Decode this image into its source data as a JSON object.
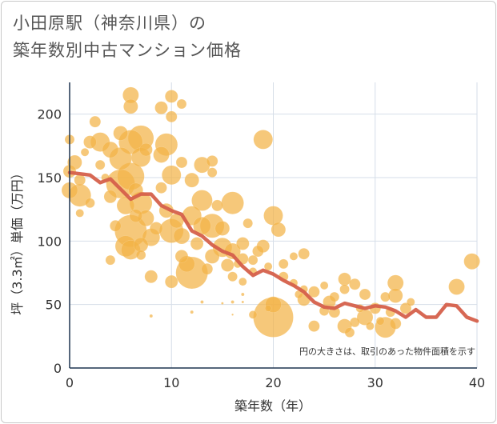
{
  "title_lines": [
    "小田原駅（神奈川県）の",
    "築年数別中古マンション価格"
  ],
  "chart_data": {
    "type": "scatter",
    "title": "小田原駅（神奈川県）の築年数別中古マンション価格",
    "xlabel": "築年数（年）",
    "ylabel": "坪（3.3㎡）単価（万円）",
    "xlim": [
      0,
      40
    ],
    "ylim": [
      0,
      225
    ],
    "x_ticks": [
      "0",
      "10",
      "20",
      "30",
      "40"
    ],
    "x_tick_values": [
      0,
      10,
      20,
      30,
      40
    ],
    "y_ticks": [
      "0",
      "50",
      "100",
      "150",
      "200"
    ],
    "y_tick_values": [
      0,
      50,
      100,
      150,
      200
    ],
    "grid": true,
    "annotation": "円の大きさは、取引のあった物件面積を示す",
    "colors": {
      "bubble": "#f2b347",
      "line": "#d5604b",
      "grid": "#d6dee8",
      "axis": "#1f3550"
    },
    "series": [
      {
        "type": "bubble",
        "points": [
          [
            0,
            155,
            8
          ],
          [
            0,
            180,
            6
          ],
          [
            0,
            140,
            10
          ],
          [
            0.5,
            162,
            9
          ],
          [
            1,
            148,
            7
          ],
          [
            1,
            122,
            5
          ],
          [
            1,
            136,
            14
          ],
          [
            1.5,
            170,
            5
          ],
          [
            2,
            178,
            8
          ],
          [
            2,
            130,
            6
          ],
          [
            2.5,
            194,
            7
          ],
          [
            3,
            178,
            12
          ],
          [
            3,
            160,
            6
          ],
          [
            3.5,
            150,
            5
          ],
          [
            4,
            172,
            10
          ],
          [
            4,
            135,
            8
          ],
          [
            4,
            85,
            6
          ],
          [
            4.5,
            112,
            7
          ],
          [
            5,
            185,
            9
          ],
          [
            5,
            165,
            14
          ],
          [
            5,
            145,
            18
          ],
          [
            5.5,
            128,
            11
          ],
          [
            5.5,
            96,
            13
          ],
          [
            6,
            215,
            10
          ],
          [
            6,
            206,
            9
          ],
          [
            6,
            178,
            15
          ],
          [
            6,
            151,
            17
          ],
          [
            6,
            108,
            20
          ],
          [
            6,
            93,
            12
          ],
          [
            6.5,
            140,
            9
          ],
          [
            6.5,
            120,
            8
          ],
          [
            7,
            181,
            16
          ],
          [
            7,
            166,
            12
          ],
          [
            7,
            130,
            14
          ],
          [
            7,
            97,
            9
          ],
          [
            7,
            89,
            6
          ],
          [
            7.5,
            172,
            8
          ],
          [
            7.5,
            118,
            10
          ],
          [
            8,
            103,
            11
          ],
          [
            8,
            72,
            8
          ],
          [
            8.5,
            110,
            8
          ],
          [
            9,
            205,
            8
          ],
          [
            9,
            168,
            10
          ],
          [
            9,
            142,
            7
          ],
          [
            9.5,
            176,
            14
          ],
          [
            9.5,
            124,
            9
          ],
          [
            10,
            214,
            8
          ],
          [
            10,
            198,
            7
          ],
          [
            10,
            152,
            12
          ],
          [
            10,
            108,
            15
          ],
          [
            10,
            68,
            8
          ],
          [
            10.5,
            116,
            9
          ],
          [
            11,
            208,
            6
          ],
          [
            11,
            162,
            7
          ],
          [
            11,
            104,
            10
          ],
          [
            11,
            88,
            8
          ],
          [
            11.5,
            82,
            10
          ],
          [
            12,
            148,
            9
          ],
          [
            12,
            120,
            12
          ],
          [
            12,
            75,
            20
          ],
          [
            12.5,
            98,
            8
          ],
          [
            13,
            160,
            10
          ],
          [
            13,
            132,
            13
          ],
          [
            13,
            112,
            11
          ],
          [
            13.5,
            78,
            7
          ],
          [
            14,
            163,
            7
          ],
          [
            14,
            154,
            6
          ],
          [
            14,
            112,
            15
          ],
          [
            14,
            88,
            9
          ],
          [
            14.5,
            128,
            7
          ],
          [
            15,
            110,
            9
          ],
          [
            15,
            95,
            12
          ],
          [
            15.5,
            81,
            8
          ],
          [
            16,
            130,
            14
          ],
          [
            16,
            92,
            10
          ],
          [
            16,
            72,
            6
          ],
          [
            16.5,
            82,
            5
          ],
          [
            17,
            98,
            8
          ],
          [
            17,
            86,
            7
          ],
          [
            17,
            68,
            5
          ],
          [
            17.5,
            114,
            6
          ],
          [
            18,
            85,
            6
          ],
          [
            18,
            76,
            5
          ],
          [
            18,
            42,
            5
          ],
          [
            18.5,
            92,
            7
          ],
          [
            19,
            180,
            12
          ],
          [
            19,
            96,
            8
          ],
          [
            19.5,
            80,
            5
          ],
          [
            19.5,
            47,
            4
          ],
          [
            20,
            120,
            12
          ],
          [
            20,
            50,
            10
          ],
          [
            20,
            40,
            25
          ],
          [
            20.5,
            109,
            9
          ],
          [
            21,
            82,
            6
          ],
          [
            21,
            72,
            6
          ],
          [
            22,
            88,
            5
          ],
          [
            22,
            67,
            5
          ],
          [
            22.5,
            58,
            5
          ],
          [
            23,
            90,
            7
          ],
          [
            23,
            62,
            5
          ],
          [
            23,
            54,
            8
          ],
          [
            24,
            60,
            7
          ],
          [
            24,
            33,
            7
          ],
          [
            25,
            65,
            5
          ],
          [
            25,
            45,
            6
          ],
          [
            25.5,
            52,
            8
          ],
          [
            26,
            56,
            6
          ],
          [
            26,
            44,
            7
          ],
          [
            27,
            70,
            8
          ],
          [
            27,
            62,
            6
          ],
          [
            27,
            33,
            9
          ],
          [
            27.5,
            28,
            6
          ],
          [
            28,
            66,
            7
          ],
          [
            28,
            36,
            6
          ],
          [
            28.5,
            47,
            5
          ],
          [
            29,
            58,
            7
          ],
          [
            29,
            40,
            10
          ],
          [
            29.5,
            33,
            5
          ],
          [
            30,
            47,
            7
          ],
          [
            30.5,
            37,
            5
          ],
          [
            31,
            56,
            6
          ],
          [
            31,
            32,
            13
          ],
          [
            31.5,
            44,
            6
          ],
          [
            32,
            67,
            10
          ],
          [
            32,
            57,
            9
          ],
          [
            32,
            35,
            7
          ],
          [
            33,
            47,
            7
          ],
          [
            33.5,
            52,
            5
          ],
          [
            38,
            64,
            10
          ],
          [
            39.5,
            84,
            10
          ],
          [
            17,
            58,
            2
          ],
          [
            17,
            52,
            1.5
          ],
          [
            8,
            41,
            2
          ],
          [
            16,
            52,
            2
          ],
          [
            15,
            51,
            1.5
          ],
          [
            12,
            44,
            2
          ],
          [
            13,
            52,
            2
          ],
          [
            16,
            42,
            1.2
          ]
        ]
      },
      {
        "type": "line",
        "points": [
          [
            0,
            154
          ],
          [
            1,
            153
          ],
          [
            2,
            152
          ],
          [
            3,
            146
          ],
          [
            4,
            149
          ],
          [
            5,
            141
          ],
          [
            6,
            133
          ],
          [
            7,
            137
          ],
          [
            8,
            137
          ],
          [
            9,
            128
          ],
          [
            10,
            124
          ],
          [
            11,
            121
          ],
          [
            12,
            108
          ],
          [
            13,
            104
          ],
          [
            14,
            97
          ],
          [
            15,
            92
          ],
          [
            16,
            89
          ],
          [
            17,
            80
          ],
          [
            18,
            73
          ],
          [
            19,
            77
          ],
          [
            20,
            74
          ],
          [
            21,
            69
          ],
          [
            22,
            65
          ],
          [
            23,
            60
          ],
          [
            24,
            52
          ],
          [
            25,
            48
          ],
          [
            26,
            47
          ],
          [
            27,
            51
          ],
          [
            28,
            49
          ],
          [
            29,
            47
          ],
          [
            30,
            49
          ],
          [
            31,
            48
          ],
          [
            32,
            45
          ],
          [
            33,
            40
          ],
          [
            34,
            46
          ],
          [
            35,
            40
          ],
          [
            36,
            40
          ],
          [
            37,
            50
          ],
          [
            38,
            49
          ],
          [
            39,
            40
          ],
          [
            40,
            37
          ]
        ]
      }
    ]
  }
}
